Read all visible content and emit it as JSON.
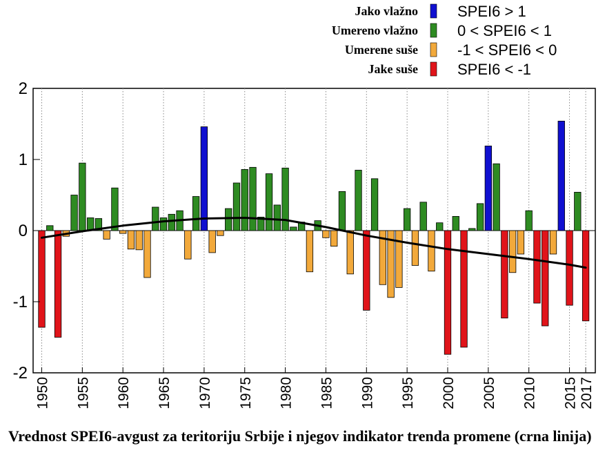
{
  "chart_data": {
    "type": "bar",
    "title": "",
    "xlabel": "",
    "ylabel": "",
    "ylim": [
      -2,
      2
    ],
    "yticks": [
      "2",
      "1",
      "0",
      "-1",
      "-2"
    ],
    "xticks": [
      "1950",
      "1955",
      "1960",
      "1965",
      "1970",
      "1975",
      "1980",
      "1985",
      "1990",
      "1995",
      "2000",
      "2005",
      "2010",
      "2015",
      "2017"
    ],
    "grid": "vertical dotted lines at each 5-year tick",
    "legend_placement": "top-right",
    "legend": [
      {
        "name": "Jako vlažno",
        "range": "SPEI6 > 1",
        "color": "#1010d0"
      },
      {
        "name": "Umereno vlažno",
        "range": "0 < SPEI6 < 1",
        "color": "#2e8b22"
      },
      {
        "name": "Umerene suše",
        "range": "-1 < SPEI6 < 0",
        "color": "#f2a93b"
      },
      {
        "name": "Jake suše",
        "range": "SPEI6 < -1",
        "color": "#e0141a"
      }
    ],
    "categories": [
      1950,
      1951,
      1952,
      1953,
      1954,
      1955,
      1956,
      1957,
      1958,
      1959,
      1960,
      1961,
      1962,
      1963,
      1964,
      1965,
      1966,
      1967,
      1968,
      1969,
      1970,
      1971,
      1972,
      1973,
      1974,
      1975,
      1976,
      1977,
      1978,
      1979,
      1980,
      1981,
      1982,
      1983,
      1984,
      1985,
      1986,
      1987,
      1988,
      1989,
      1990,
      1991,
      1992,
      1993,
      1994,
      1995,
      1996,
      1997,
      1998,
      1999,
      2000,
      2001,
      2002,
      2003,
      2004,
      2005,
      2006,
      2007,
      2008,
      2009,
      2010,
      2011,
      2012,
      2013,
      2014,
      2015,
      2016,
      2017
    ],
    "series": [
      {
        "name": "SPEI6-avgust",
        "values": [
          -1.36,
          0.07,
          -1.5,
          -0.08,
          0.5,
          0.95,
          0.18,
          0.17,
          -0.12,
          0.6,
          -0.04,
          -0.26,
          -0.27,
          -0.66,
          0.33,
          0.18,
          0.23,
          0.28,
          -0.4,
          0.48,
          1.46,
          -0.31,
          -0.07,
          0.31,
          0.67,
          0.86,
          0.89,
          0.19,
          0.8,
          0.36,
          0.88,
          0.05,
          0.12,
          -0.58,
          0.14,
          -0.1,
          -0.22,
          0.55,
          -0.61,
          0.85,
          -1.12,
          0.73,
          -0.76,
          -0.94,
          -0.8,
          0.31,
          -0.49,
          0.4,
          -0.57,
          0.11,
          -1.74,
          0.2,
          -1.64,
          0.03,
          0.38,
          1.19,
          0.94,
          -1.23,
          -0.59,
          -0.33,
          0.28,
          -1.02,
          -1.34,
          -0.33,
          1.54,
          -1.05,
          0.54,
          -1.27
        ]
      }
    ],
    "trend_line": {
      "name": "indikator trenda promene",
      "color": "#000000",
      "x": [
        1950,
        1955,
        1960,
        1965,
        1970,
        1975,
        1980,
        1985,
        1990,
        1995,
        2000,
        2005,
        2010,
        2015,
        2017
      ],
      "y": [
        -0.1,
        -0.01,
        0.07,
        0.13,
        0.17,
        0.18,
        0.15,
        0.05,
        -0.07,
        -0.17,
        -0.26,
        -0.33,
        -0.4,
        -0.48,
        -0.52
      ]
    }
  },
  "caption": "Vrednost SPEI6-avgust za teritoriju Srbije i njegov indikator trenda promene (crna linija)"
}
